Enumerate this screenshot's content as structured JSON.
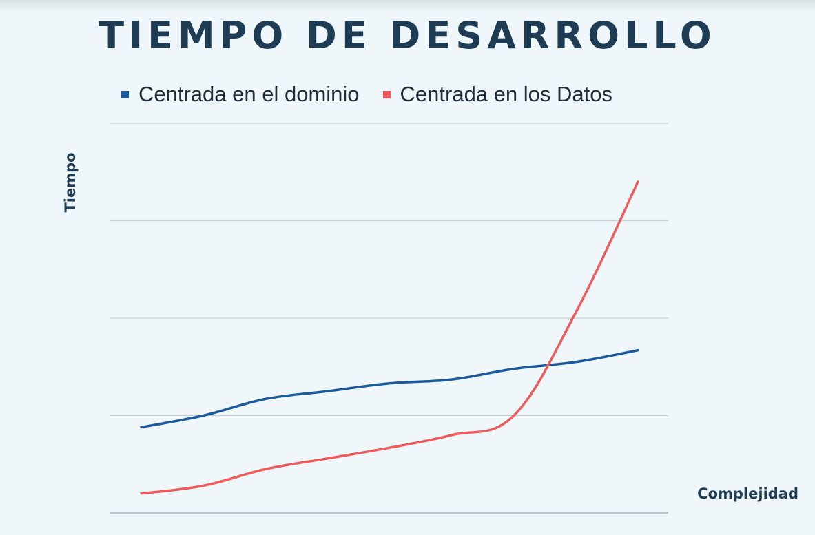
{
  "chart_data": {
    "type": "line",
    "title": "TIEMPO DE DESARROLLO",
    "xlabel": "Complejidad",
    "ylabel": "Tiempo",
    "grid": true,
    "legend_position": "top",
    "x": [
      1,
      2,
      3,
      4,
      5,
      6,
      7,
      8,
      9
    ],
    "ylim": [
      0,
      4
    ],
    "series": [
      {
        "name": "Centrada en el dominio",
        "color": "#1b5a9b",
        "values": [
          0.88,
          1.0,
          1.17,
          1.25,
          1.33,
          1.37,
          1.48,
          1.55,
          1.67
        ]
      },
      {
        "name": "Centrada en los Datos",
        "color": "#ef5b5b",
        "values": [
          0.2,
          0.28,
          0.45,
          0.56,
          0.67,
          0.8,
          1.0,
          2.06,
          3.4
        ]
      }
    ]
  }
}
